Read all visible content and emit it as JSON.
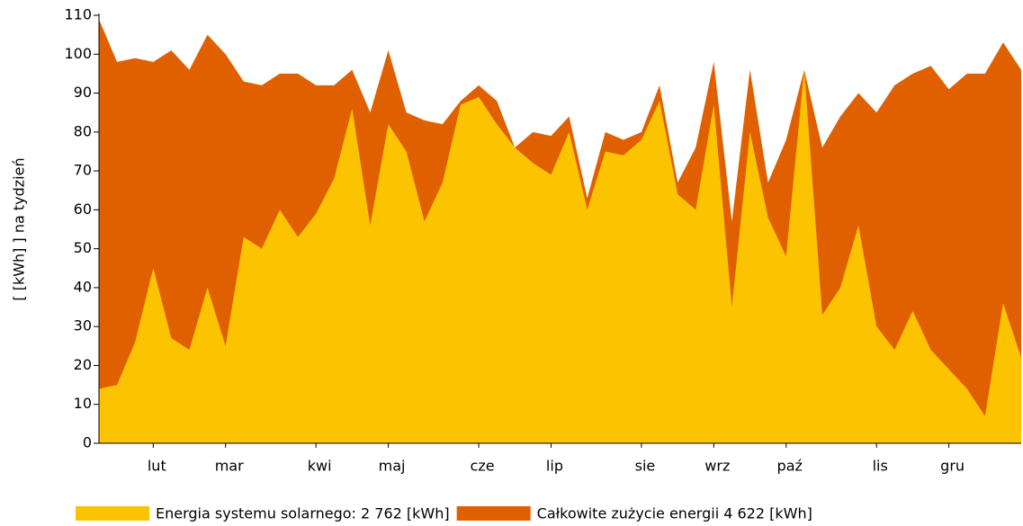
{
  "chart_data": {
    "type": "area",
    "y_label": "[ [kWh] ]  na tydzień",
    "categories": [
      null,
      null,
      null,
      "lut",
      null,
      null,
      null,
      "mar",
      null,
      null,
      null,
      null,
      "kwi",
      null,
      null,
      null,
      "maj",
      null,
      null,
      null,
      null,
      "cze",
      null,
      null,
      null,
      "lip",
      null,
      null,
      null,
      null,
      "sie",
      null,
      null,
      null,
      "wrz",
      null,
      null,
      null,
      "paź",
      null,
      null,
      null,
      null,
      "lis",
      null,
      null,
      null,
      "gru",
      null,
      null,
      null,
      null
    ],
    "series": [
      {
        "name": "Energia systemu solarnego: 2 762 [kWh]",
        "color": "#fcc400",
        "values": [
          14,
          15,
          26,
          45,
          27,
          24,
          40,
          25,
          53,
          50,
          60,
          53,
          59,
          68,
          86,
          56,
          82,
          75,
          57,
          67,
          87,
          89,
          82,
          76,
          72,
          69,
          80,
          60,
          75,
          74,
          78,
          88,
          64,
          60,
          87,
          35,
          80,
          58,
          48,
          96,
          33,
          40,
          56,
          30,
          24,
          34,
          24,
          19,
          14,
          7,
          36,
          22
        ]
      },
      {
        "name": "Całkowite zużycie energii 4 622 [kWh]",
        "color": "#e06000",
        "values": [
          109,
          98,
          99,
          98,
          101,
          96,
          105,
          100,
          93,
          92,
          95,
          95,
          92,
          92,
          96,
          85,
          101,
          85,
          83,
          82,
          88,
          92,
          88,
          76,
          80,
          79,
          84,
          63,
          80,
          78,
          80,
          92,
          67,
          76,
          98,
          57,
          96,
          67,
          78,
          96,
          76,
          84,
          90,
          85,
          92,
          95,
          97,
          91,
          95,
          95,
          103,
          96
        ]
      }
    ],
    "ylim": [
      0,
      110
    ],
    "yticks": [
      0,
      10,
      20,
      30,
      40,
      50,
      60,
      70,
      80,
      90,
      100,
      110
    ]
  }
}
